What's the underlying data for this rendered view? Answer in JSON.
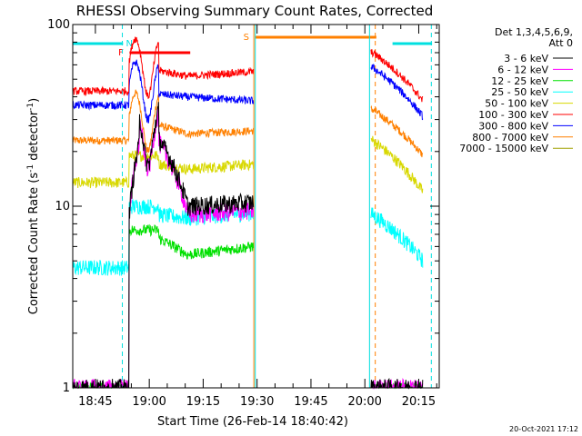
{
  "chart_data": {
    "type": "line",
    "title": "RHESSI Observing Summary Count Rates, Corrected",
    "xlabel": "Start Time (26-Feb-14 18:40:42)",
    "ylabel_main": "Corrected Count Rate (s",
    "ylabel_exp1": "-1",
    "ylabel_mid": " detector",
    "ylabel_exp2": "-1",
    "ylabel_end": ")",
    "y_scale": "log",
    "ylim": [
      1,
      100
    ],
    "xlim_minutes": [
      -2,
      100
    ],
    "y_ticks": [
      {
        "value": 100,
        "label": "100"
      },
      {
        "value": 10,
        "label": "10"
      },
      {
        "value": 1,
        "label": "1"
      }
    ],
    "x_ticks": [
      {
        "value": 4.3,
        "label": "18:45"
      },
      {
        "value": 19.3,
        "label": "19:00"
      },
      {
        "value": 34.3,
        "label": "19:15"
      },
      {
        "value": 49.3,
        "label": "19:30"
      },
      {
        "value": 64.3,
        "label": "19:45"
      },
      {
        "value": 79.3,
        "label": "20:00"
      },
      {
        "value": 94.3,
        "label": "20:15"
      }
    ],
    "legend_header": [
      "Det 1,3,4,5,6,9,",
      "Att 0"
    ],
    "legend_position": "top-right",
    "series": [
      {
        "name": "3 - 6 keV",
        "color": "#000000"
      },
      {
        "name": "6 - 12 keV",
        "color": "#ff00ff"
      },
      {
        "name": "12 - 25 keV",
        "color": "#00e000"
      },
      {
        "name": "25 - 50 keV",
        "color": "#00ffff"
      },
      {
        "name": "50 - 100 keV",
        "color": "#d8d800"
      },
      {
        "name": "100 - 300 keV",
        "color": "#ff0000"
      },
      {
        "name": "300 - 800 keV",
        "color": "#0000ff"
      },
      {
        "name": "800 - 7000 keV",
        "color": "#ff8000"
      },
      {
        "name": "7000 - 15000 keV",
        "color": "#a0a000"
      }
    ],
    "flag_markers": [
      {
        "label": "N",
        "color": "#00e0e0"
      },
      {
        "label": "F",
        "color": "#ff0000"
      },
      {
        "label": "S",
        "color": "#ff8000"
      }
    ],
    "timestamp": "20-Oct-2021 17:12"
  }
}
